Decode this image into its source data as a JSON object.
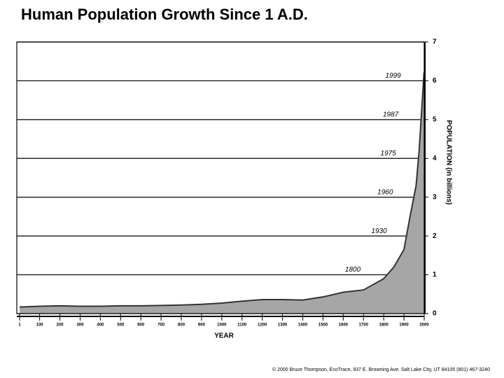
{
  "chart_data": {
    "type": "area",
    "title": "Human Population Growth Since 1 A.D.",
    "x_label": "YEAR",
    "y_label": "POPULATION (in billions)",
    "footer": "© 2000 Bruce Thompson, EcoTrace, 937 E. Browning Ave. Salt Lake City, UT 84105 (801) 467-3240",
    "x": [
      1,
      100,
      200,
      300,
      400,
      500,
      600,
      700,
      800,
      900,
      1000,
      1100,
      1200,
      1300,
      1400,
      1500,
      1600,
      1700,
      1800,
      1850,
      1900,
      1930,
      1960,
      1975,
      1987,
      1999,
      2000
    ],
    "values": [
      0.17,
      0.19,
      0.2,
      0.19,
      0.19,
      0.2,
      0.2,
      0.21,
      0.22,
      0.24,
      0.27,
      0.32,
      0.36,
      0.36,
      0.35,
      0.43,
      0.55,
      0.61,
      0.9,
      1.2,
      1.65,
      2.5,
      3.3,
      4.2,
      5.2,
      6.2,
      6.2
    ],
    "color": "#a6a6a6",
    "xlim": [
      1,
      2000
    ],
    "xticks": [
      1,
      100,
      200,
      300,
      400,
      500,
      600,
      700,
      800,
      900,
      1000,
      1100,
      1200,
      1300,
      1400,
      1500,
      1600,
      1700,
      1800,
      1900,
      2000
    ],
    "ylim": [
      0,
      7
    ],
    "yticks": [
      0,
      1,
      2,
      3,
      4,
      5,
      6,
      7
    ],
    "grid": true,
    "annotations": [
      {
        "text": "1800",
        "x": 1800,
        "y": 1
      },
      {
        "text": "1930",
        "x": 1930,
        "y": 2
      },
      {
        "text": "1960",
        "x": 1960,
        "y": 3
      },
      {
        "text": "1975",
        "x": 1975,
        "y": 4
      },
      {
        "text": "1987",
        "x": 1987,
        "y": 5
      },
      {
        "text": "1999",
        "x": 1999,
        "y": 6
      }
    ]
  }
}
